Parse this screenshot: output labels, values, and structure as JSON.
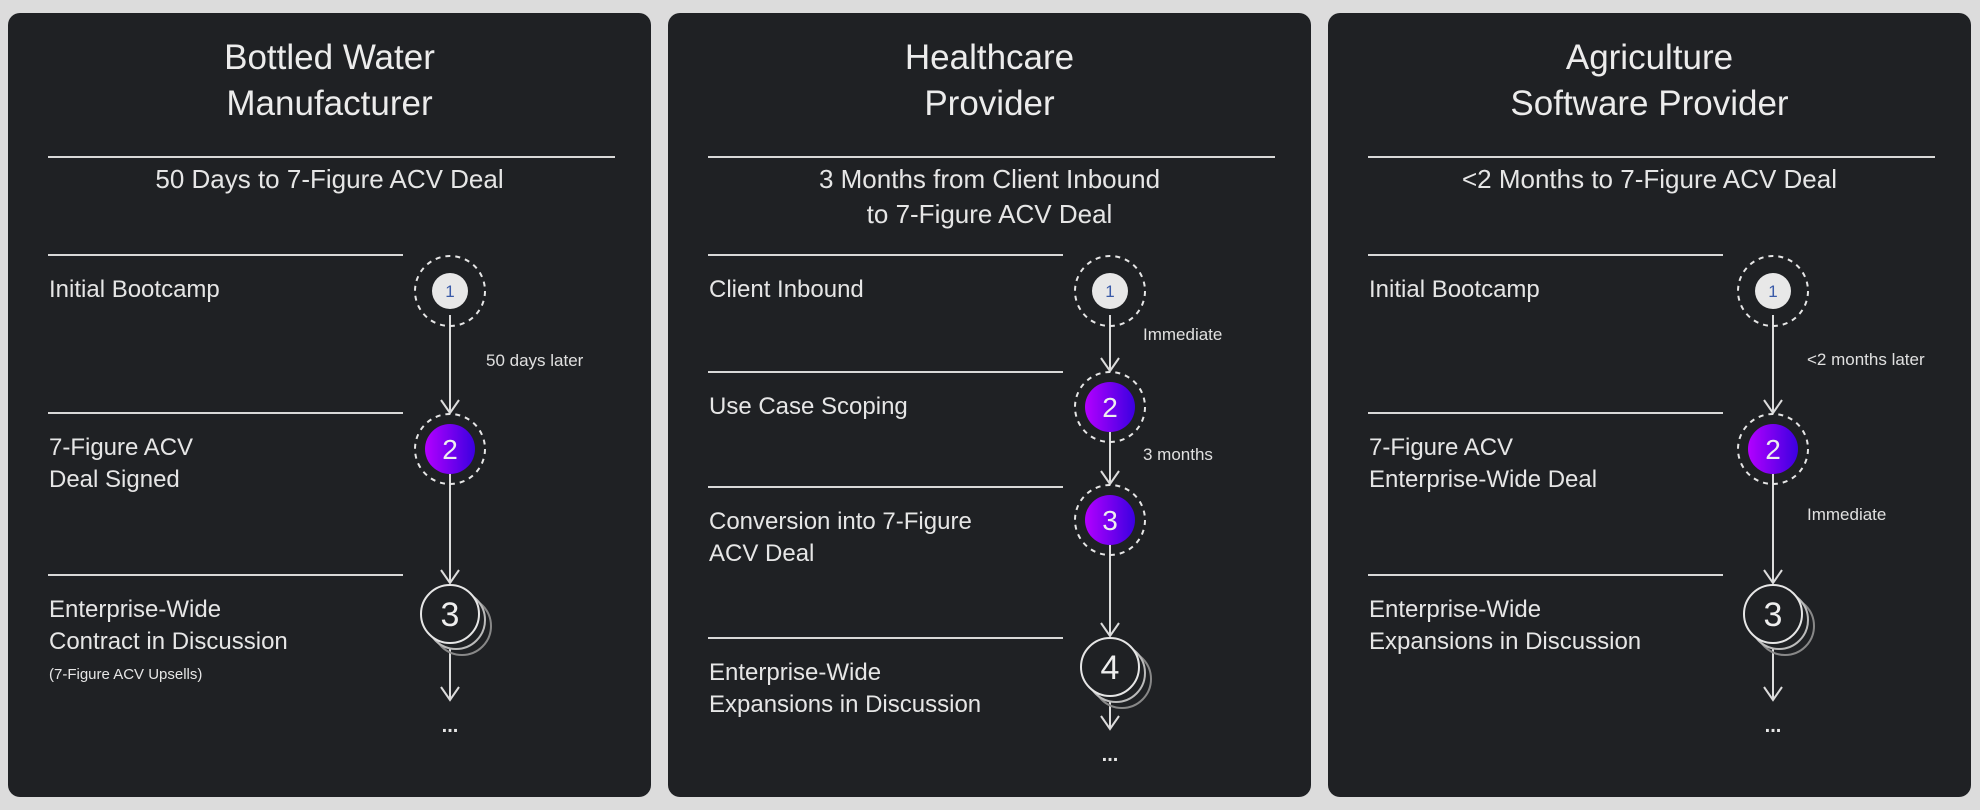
{
  "colors": {
    "panel_bg": "#1f2124",
    "page_bg": "#dcdcdc",
    "accent_gradient": [
      "#b300ff",
      "#3b00e0"
    ],
    "start_fill": "#e8e8e8",
    "start_number": "#3a5aa8"
  },
  "panels": [
    {
      "title_line1": "Bottled Water",
      "title_line2": "Manufacturer",
      "subtitle_line1": "50 Days to 7-Figure ACV Deal",
      "subtitle_line2": "",
      "steps": [
        {
          "number": "1",
          "style": "start",
          "label_line1": "Initial Bootcamp",
          "label_line2": "",
          "note": ""
        },
        {
          "number": "2",
          "style": "active",
          "label_line1": "7-Figure ACV",
          "label_line2": "Deal Signed",
          "note": ""
        },
        {
          "number": "3",
          "style": "stacked",
          "label_line1": "Enterprise-Wide",
          "label_line2": "Contract in Discussion",
          "note": "(7-Figure ACV Upsells)"
        }
      ],
      "gap_labels": [
        "50 days later"
      ],
      "continuation": "..."
    },
    {
      "title_line1": "Healthcare",
      "title_line2": "Provider",
      "subtitle_line1": "3 Months from Client Inbound",
      "subtitle_line2": "to 7-Figure ACV Deal",
      "steps": [
        {
          "number": "1",
          "style": "start",
          "label_line1": "Client Inbound",
          "label_line2": "",
          "note": ""
        },
        {
          "number": "2",
          "style": "active",
          "label_line1": "Use Case Scoping",
          "label_line2": "",
          "note": ""
        },
        {
          "number": "3",
          "style": "active",
          "label_line1": "Conversion into 7-Figure",
          "label_line2": "ACV Deal",
          "note": ""
        },
        {
          "number": "4",
          "style": "stacked",
          "label_line1": "Enterprise-Wide",
          "label_line2": "Expansions in Discussion",
          "note": ""
        }
      ],
      "gap_labels": [
        "Immediate",
        "3 months"
      ],
      "continuation": "..."
    },
    {
      "title_line1": "Agriculture",
      "title_line2": "Software Provider",
      "subtitle_line1": "<2 Months to 7-Figure ACV Deal",
      "subtitle_line2": "",
      "steps": [
        {
          "number": "1",
          "style": "start",
          "label_line1": "Initial Bootcamp",
          "label_line2": "",
          "note": ""
        },
        {
          "number": "2",
          "style": "active",
          "label_line1": "7-Figure ACV",
          "label_line2": "Enterprise-Wide Deal",
          "note": ""
        },
        {
          "number": "3",
          "style": "stacked",
          "label_line1": "Enterprise-Wide",
          "label_line2": "Expansions in Discussion",
          "note": ""
        }
      ],
      "gap_labels": [
        "<2 months later",
        "Immediate"
      ],
      "continuation": "..."
    }
  ]
}
